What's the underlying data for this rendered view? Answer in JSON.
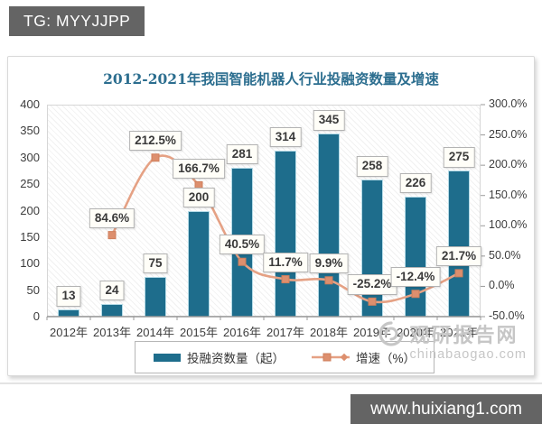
{
  "page": {
    "top_badge": "TG: MYYJJPP",
    "bottom_badge": "www.huixiang1.com"
  },
  "chart": {
    "colors": {
      "bar": "#1e6d8c",
      "bar_border": "#b5dbe7",
      "line": "#e5a184",
      "marker": "#dd8f6e",
      "marker_border": "#cf7f5c",
      "title": "#2c6e8f",
      "label_box_bg": "#fffef8",
      "label_box_border": "#b3b3b3",
      "axis_text": "#3d3d3d"
    },
    "watermark": {
      "name": "观研报告网",
      "domain": "chinabaogao.com"
    }
  },
  "chart_data": {
    "type": "bar+line",
    "title": "2012-2021年我国智能机器人行业投融资数量及增速",
    "categories": [
      "2012年",
      "2013年",
      "2014年",
      "2015年",
      "2016年",
      "2017年",
      "2018年",
      "2019年",
      "2020年",
      "2021年"
    ],
    "series": [
      {
        "name": "投融资数量（起）",
        "type": "bar",
        "axis": "left",
        "values": [
          13,
          24,
          75,
          200,
          281,
          314,
          345,
          258,
          226,
          275
        ]
      },
      {
        "name": "增速（%）",
        "type": "line",
        "axis": "right",
        "values": [
          null,
          84.6,
          212.5,
          166.7,
          40.5,
          11.7,
          9.9,
          -25.2,
          -12.4,
          21.7
        ],
        "point_labels": [
          "",
          "84.6%",
          "212.5%",
          "166.7%",
          "40.5%",
          "11.7%",
          "9.9%",
          "-25.2%",
          "-12.4%",
          "21.7%"
        ]
      }
    ],
    "left_axis": {
      "min": 0,
      "max": 400,
      "step": 50,
      "tick_labels": [
        "0",
        "50",
        "100",
        "150",
        "200",
        "250",
        "300",
        "350",
        "400"
      ]
    },
    "right_axis": {
      "min": -50,
      "max": 300,
      "step": 50,
      "tick_labels": [
        "-50.0%",
        "0.0%",
        "50.0%",
        "100.0%",
        "150.0%",
        "200.0%",
        "250.0%",
        "300.0%"
      ]
    },
    "legend_position": "bottom",
    "grid": false
  }
}
